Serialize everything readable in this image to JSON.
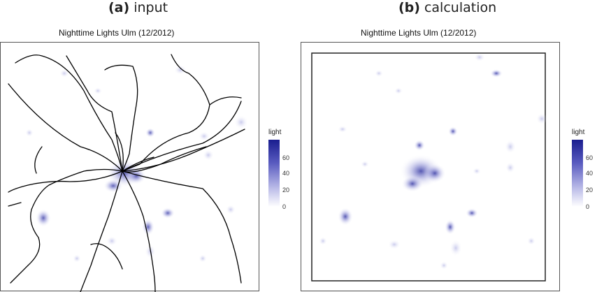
{
  "panels": [
    {
      "caption_tag": "(a)",
      "caption_label": "input",
      "title": "Nighttime Lights Ulm (12/2012)"
    },
    {
      "caption_tag": "(b)",
      "caption_label": "calculation",
      "title": "Nighttime Lights Ulm (12/2012)"
    }
  ],
  "legend": {
    "title": "light",
    "ticks": [
      "60",
      "40",
      "20",
      "0"
    ]
  },
  "colors": {
    "low": "#ffffff",
    "high": "#1a1d8f",
    "roads": "#000000",
    "frame": "#333333"
  }
}
